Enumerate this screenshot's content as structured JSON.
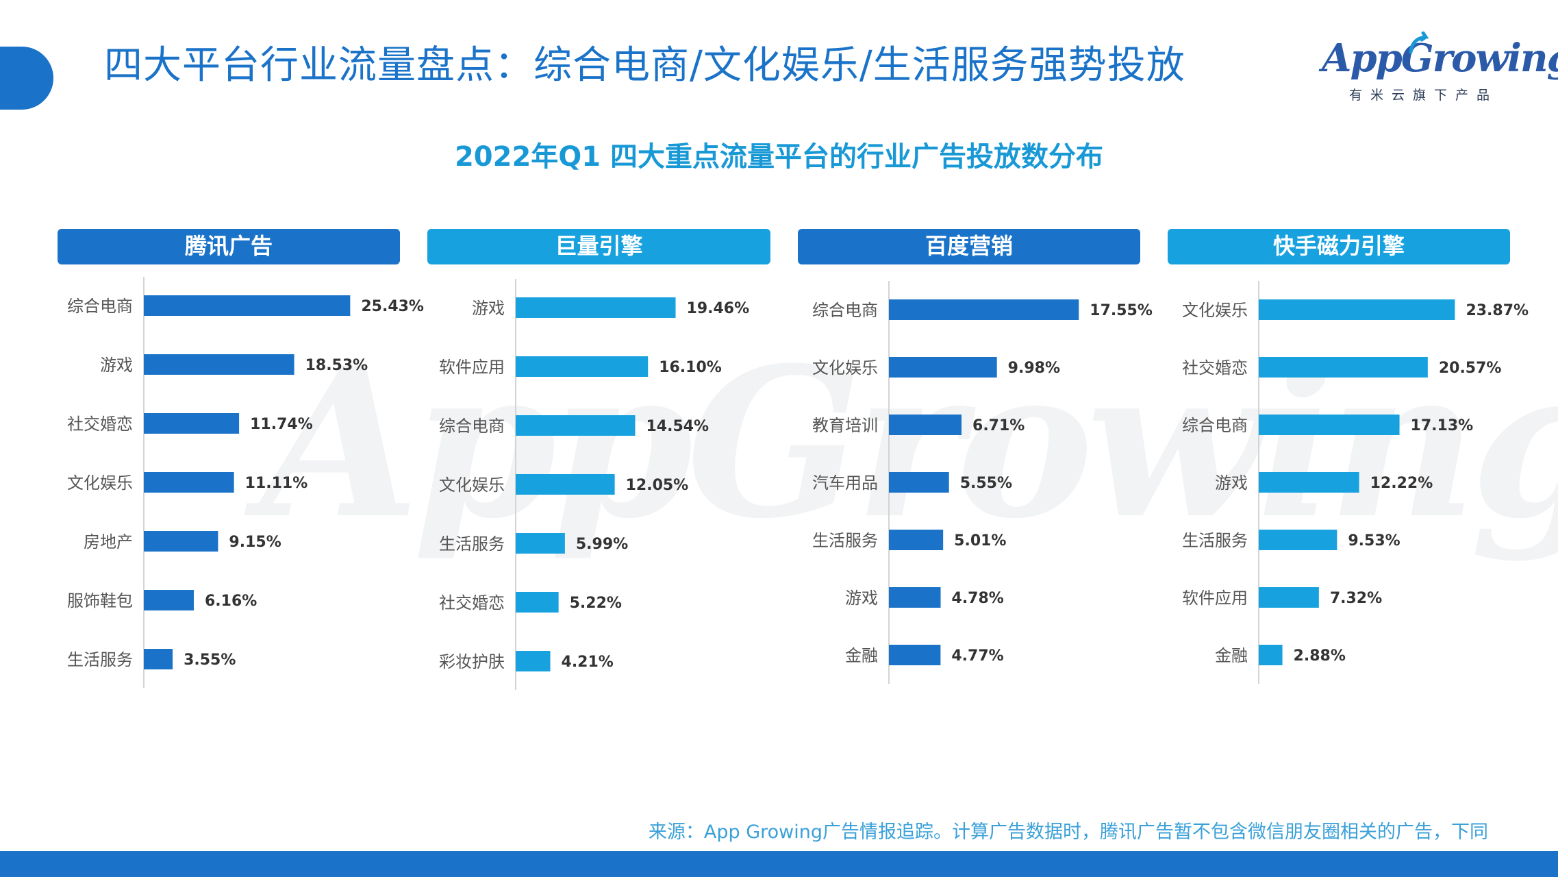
{
  "header": {
    "title": "四大平台行业流量盘点：综合电商/文化娱乐/生活服务强势投放",
    "logo_text": "AppGrowing",
    "logo_tagline": "有米云旗下产品"
  },
  "subtitle": "2022年Q1 四大重点流量平台的行业广告投放数分布",
  "watermark": "AppGrowing",
  "source": "来源：App Growing广告情报追踪。计算广告数据时，腾讯广告暂不包含微信朋友圈相关的广告，下同",
  "colors": {
    "dark_blue": "#1a73c8",
    "light_blue": "#17a2df",
    "title_blue": "#1a73c8",
    "subtitle_blue": "#1899d6"
  },
  "chart_data": [
    {
      "type": "bar",
      "orientation": "horizontal",
      "title": "腾讯广告",
      "categories": [
        "综合电商",
        "游戏",
        "社交婚恋",
        "文化娱乐",
        "房地产",
        "服饰鞋包",
        "生活服务"
      ],
      "values": [
        25.43,
        18.53,
        11.74,
        11.11,
        9.15,
        6.16,
        3.55
      ],
      "labels": [
        "25.43%",
        "18.53%",
        "11.74%",
        "11.11%",
        "9.15%",
        "6.16%",
        "3.55%"
      ],
      "color": "#1a73c8"
    },
    {
      "type": "bar",
      "orientation": "horizontal",
      "title": "巨量引擎",
      "categories": [
        "游戏",
        "软件应用",
        "综合电商",
        "文化娱乐",
        "生活服务",
        "社交婚恋",
        "彩妆护肤"
      ],
      "values": [
        19.46,
        16.1,
        14.54,
        12.05,
        5.99,
        5.22,
        4.21
      ],
      "labels": [
        "19.46%",
        "16.10%",
        "14.54%",
        "12.05%",
        "5.99%",
        "5.22%",
        "4.21%"
      ],
      "color": "#17a2df"
    },
    {
      "type": "bar",
      "orientation": "horizontal",
      "title": "百度营销",
      "categories": [
        "综合电商",
        "文化娱乐",
        "教育培训",
        "汽车用品",
        "生活服务",
        "游戏",
        "金融"
      ],
      "values": [
        17.55,
        9.98,
        6.71,
        5.55,
        5.01,
        4.78,
        4.77
      ],
      "labels": [
        "17.55%",
        "9.98%",
        "6.71%",
        "5.55%",
        "5.01%",
        "4.78%",
        "4.77%"
      ],
      "color": "#1a73c8"
    },
    {
      "type": "bar",
      "orientation": "horizontal",
      "title": "快手磁力引擎",
      "categories": [
        "文化娱乐",
        "社交婚恋",
        "综合电商",
        "游戏",
        "生活服务",
        "软件应用",
        "金融"
      ],
      "values": [
        23.87,
        20.57,
        17.13,
        12.22,
        9.53,
        7.32,
        2.88
      ],
      "labels": [
        "23.87%",
        "20.57%",
        "17.13%",
        "12.22%",
        "9.53%",
        "7.32%",
        "2.88%"
      ],
      "color": "#17a2df"
    }
  ]
}
